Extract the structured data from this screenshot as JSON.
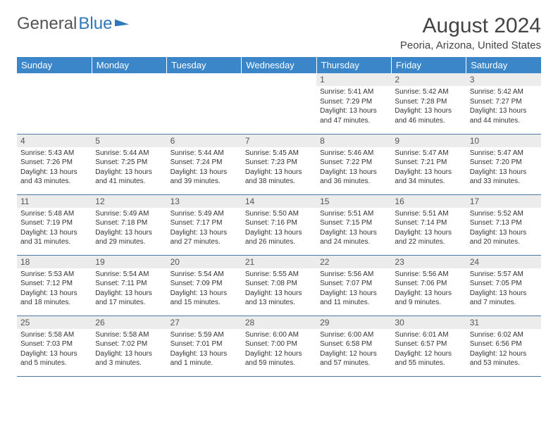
{
  "logo": {
    "text1": "General",
    "text2": "Blue"
  },
  "title": "August 2024",
  "location": "Peoria, Arizona, United States",
  "colors": {
    "header_bg": "#3a86c8",
    "header_fg": "#ffffff",
    "daynum_bg": "#ececec",
    "border": "#4a7aa8"
  },
  "weekdays": [
    "Sunday",
    "Monday",
    "Tuesday",
    "Wednesday",
    "Thursday",
    "Friday",
    "Saturday"
  ],
  "weeks": [
    [
      null,
      null,
      null,
      null,
      {
        "n": "1",
        "sr": "5:41 AM",
        "ss": "7:29 PM",
        "dl": "13 hours and 47 minutes."
      },
      {
        "n": "2",
        "sr": "5:42 AM",
        "ss": "7:28 PM",
        "dl": "13 hours and 46 minutes."
      },
      {
        "n": "3",
        "sr": "5:42 AM",
        "ss": "7:27 PM",
        "dl": "13 hours and 44 minutes."
      }
    ],
    [
      {
        "n": "4",
        "sr": "5:43 AM",
        "ss": "7:26 PM",
        "dl": "13 hours and 43 minutes."
      },
      {
        "n": "5",
        "sr": "5:44 AM",
        "ss": "7:25 PM",
        "dl": "13 hours and 41 minutes."
      },
      {
        "n": "6",
        "sr": "5:44 AM",
        "ss": "7:24 PM",
        "dl": "13 hours and 39 minutes."
      },
      {
        "n": "7",
        "sr": "5:45 AM",
        "ss": "7:23 PM",
        "dl": "13 hours and 38 minutes."
      },
      {
        "n": "8",
        "sr": "5:46 AM",
        "ss": "7:22 PM",
        "dl": "13 hours and 36 minutes."
      },
      {
        "n": "9",
        "sr": "5:47 AM",
        "ss": "7:21 PM",
        "dl": "13 hours and 34 minutes."
      },
      {
        "n": "10",
        "sr": "5:47 AM",
        "ss": "7:20 PM",
        "dl": "13 hours and 33 minutes."
      }
    ],
    [
      {
        "n": "11",
        "sr": "5:48 AM",
        "ss": "7:19 PM",
        "dl": "13 hours and 31 minutes."
      },
      {
        "n": "12",
        "sr": "5:49 AM",
        "ss": "7:18 PM",
        "dl": "13 hours and 29 minutes."
      },
      {
        "n": "13",
        "sr": "5:49 AM",
        "ss": "7:17 PM",
        "dl": "13 hours and 27 minutes."
      },
      {
        "n": "14",
        "sr": "5:50 AM",
        "ss": "7:16 PM",
        "dl": "13 hours and 26 minutes."
      },
      {
        "n": "15",
        "sr": "5:51 AM",
        "ss": "7:15 PM",
        "dl": "13 hours and 24 minutes."
      },
      {
        "n": "16",
        "sr": "5:51 AM",
        "ss": "7:14 PM",
        "dl": "13 hours and 22 minutes."
      },
      {
        "n": "17",
        "sr": "5:52 AM",
        "ss": "7:13 PM",
        "dl": "13 hours and 20 minutes."
      }
    ],
    [
      {
        "n": "18",
        "sr": "5:53 AM",
        "ss": "7:12 PM",
        "dl": "13 hours and 18 minutes."
      },
      {
        "n": "19",
        "sr": "5:54 AM",
        "ss": "7:11 PM",
        "dl": "13 hours and 17 minutes."
      },
      {
        "n": "20",
        "sr": "5:54 AM",
        "ss": "7:09 PM",
        "dl": "13 hours and 15 minutes."
      },
      {
        "n": "21",
        "sr": "5:55 AM",
        "ss": "7:08 PM",
        "dl": "13 hours and 13 minutes."
      },
      {
        "n": "22",
        "sr": "5:56 AM",
        "ss": "7:07 PM",
        "dl": "13 hours and 11 minutes."
      },
      {
        "n": "23",
        "sr": "5:56 AM",
        "ss": "7:06 PM",
        "dl": "13 hours and 9 minutes."
      },
      {
        "n": "24",
        "sr": "5:57 AM",
        "ss": "7:05 PM",
        "dl": "13 hours and 7 minutes."
      }
    ],
    [
      {
        "n": "25",
        "sr": "5:58 AM",
        "ss": "7:03 PM",
        "dl": "13 hours and 5 minutes."
      },
      {
        "n": "26",
        "sr": "5:58 AM",
        "ss": "7:02 PM",
        "dl": "13 hours and 3 minutes."
      },
      {
        "n": "27",
        "sr": "5:59 AM",
        "ss": "7:01 PM",
        "dl": "13 hours and 1 minute."
      },
      {
        "n": "28",
        "sr": "6:00 AM",
        "ss": "7:00 PM",
        "dl": "12 hours and 59 minutes."
      },
      {
        "n": "29",
        "sr": "6:00 AM",
        "ss": "6:58 PM",
        "dl": "12 hours and 57 minutes."
      },
      {
        "n": "30",
        "sr": "6:01 AM",
        "ss": "6:57 PM",
        "dl": "12 hours and 55 minutes."
      },
      {
        "n": "31",
        "sr": "6:02 AM",
        "ss": "6:56 PM",
        "dl": "12 hours and 53 minutes."
      }
    ]
  ],
  "labels": {
    "sunrise": "Sunrise:",
    "sunset": "Sunset:",
    "daylight": "Daylight:"
  }
}
